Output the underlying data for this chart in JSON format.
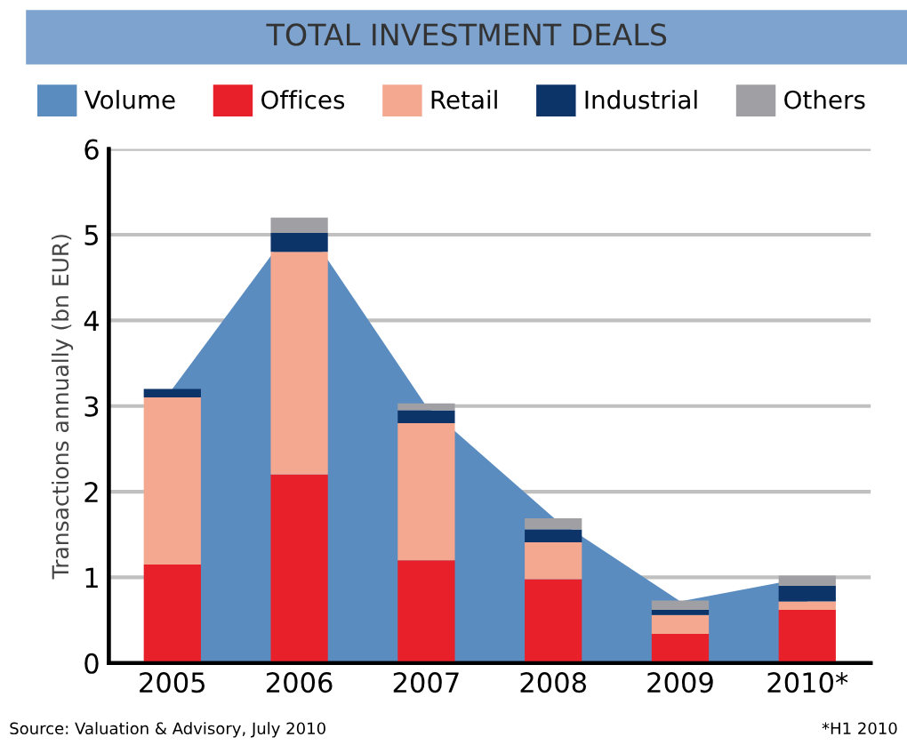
{
  "chart_data": [
    {
      "type": "area",
      "title": "TOTAL INVESTMENT DEALS",
      "ylabel": "Transactions annually (bn EUR)",
      "categories": [
        null,
        null,
        null,
        null,
        null,
        null
      ],
      "series": [
        {
          "name": "Volume",
          "color": "#5b8cc0",
          "values": [
            3.2,
            5.2,
            3.0,
            1.7,
            0.72,
            1.0
          ]
        }
      ],
      "ylim": [
        0,
        6
      ],
      "yticks": [
        0,
        1,
        2,
        3,
        4,
        5,
        6
      ],
      "tick_labels": "y",
      "grid": "y",
      "legend": "top",
      "annotations": [
        "Source: Valuation & Advisory, July 2010",
        "*H1 2010"
      ]
    },
    {
      "type": "bar",
      "stacked": true,
      "categories": [
        "2005",
        "2006",
        "2007",
        "2008",
        "2009",
        "2010*"
      ],
      "series": [
        {
          "name": "Offices",
          "color": "#e8202a",
          "values": [
            1.15,
            2.2,
            1.2,
            0.98,
            0.34,
            0.62
          ]
        },
        {
          "name": "Retail",
          "color": "#f4a890",
          "values": [
            1.95,
            2.6,
            1.6,
            0.43,
            0.22,
            0.1
          ]
        },
        {
          "name": "Industrial",
          "color": "#0d3469",
          "values": [
            0.1,
            0.22,
            0.15,
            0.15,
            0.06,
            0.18
          ]
        },
        {
          "name": "Others",
          "color": "#a0a0a4",
          "values": [
            0,
            0.18,
            0.08,
            0.13,
            0.11,
            0.12
          ]
        }
      ],
      "ylim": [
        0,
        6
      ],
      "yticks": [
        0,
        1,
        2,
        3,
        4,
        5,
        6
      ],
      "tick_labels": "x",
      "legend": "top"
    }
  ]
}
